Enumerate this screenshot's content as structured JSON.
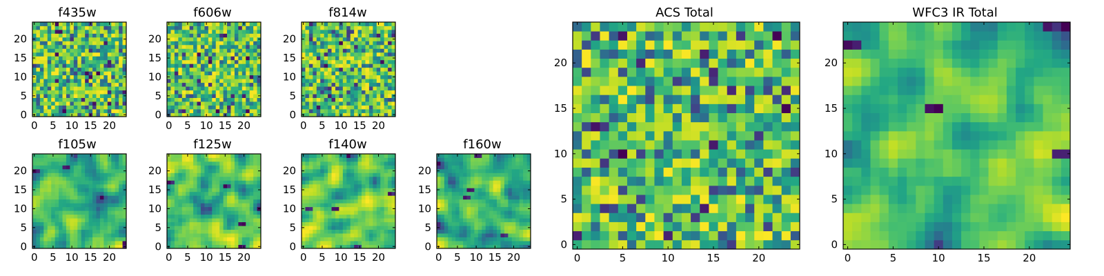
{
  "chart_data": [
    {
      "type": "heatmap",
      "title": "f435w",
      "xticks": [
        "0",
        "5",
        "10",
        "15",
        "20"
      ],
      "yticks": [
        "0",
        "5",
        "10",
        "15",
        "20"
      ],
      "grid_size": [
        25,
        25
      ],
      "colormap": "viridis",
      "texture": "noisy"
    },
    {
      "type": "heatmap",
      "title": "f606w",
      "xticks": [
        "0",
        "5",
        "10",
        "15",
        "20"
      ],
      "yticks": [
        "0",
        "5",
        "10",
        "15",
        "20"
      ],
      "grid_size": [
        25,
        25
      ],
      "colormap": "viridis",
      "texture": "noisy"
    },
    {
      "type": "heatmap",
      "title": "f814w",
      "xticks": [
        "0",
        "5",
        "10",
        "15",
        "20"
      ],
      "yticks": [
        "0",
        "5",
        "10",
        "15",
        "20"
      ],
      "grid_size": [
        25,
        25
      ],
      "colormap": "viridis",
      "texture": "noisy"
    },
    {
      "type": "heatmap",
      "title": "f105w",
      "xticks": [
        "0",
        "5",
        "10",
        "15",
        "20"
      ],
      "yticks": [
        "0",
        "5",
        "10",
        "15",
        "20"
      ],
      "grid_size": [
        25,
        25
      ],
      "colormap": "viridis",
      "texture": "smooth"
    },
    {
      "type": "heatmap",
      "title": "f125w",
      "xticks": [
        "0",
        "5",
        "10",
        "15",
        "20"
      ],
      "yticks": [
        "0",
        "5",
        "10",
        "15",
        "20"
      ],
      "grid_size": [
        25,
        25
      ],
      "colormap": "viridis",
      "texture": "smooth"
    },
    {
      "type": "heatmap",
      "title": "f140w",
      "xticks": [
        "0",
        "5",
        "10",
        "15",
        "20"
      ],
      "yticks": [
        "0",
        "5",
        "10",
        "15",
        "20"
      ],
      "grid_size": [
        25,
        25
      ],
      "colormap": "viridis",
      "texture": "smooth"
    },
    {
      "type": "heatmap",
      "title": "f160w",
      "xticks": [
        "0",
        "5",
        "10",
        "15",
        "20"
      ],
      "yticks": [
        "0",
        "5",
        "10",
        "15",
        "20"
      ],
      "grid_size": [
        25,
        25
      ],
      "colormap": "viridis",
      "texture": "smooth"
    },
    {
      "type": "heatmap",
      "title": "ACS Total",
      "xticks": [
        "0",
        "5",
        "10",
        "15",
        "20"
      ],
      "yticks": [
        "0",
        "5",
        "10",
        "15",
        "20"
      ],
      "grid_size": [
        25,
        25
      ],
      "colormap": "viridis",
      "texture": "noisy"
    },
    {
      "type": "heatmap",
      "title": "WFC3 IR Total",
      "xticks": [
        "0",
        "5",
        "10",
        "15",
        "20"
      ],
      "yticks": [
        "0",
        "5",
        "10",
        "15",
        "20"
      ],
      "grid_size": [
        25,
        25
      ],
      "colormap": "viridis",
      "texture": "smooth"
    }
  ]
}
